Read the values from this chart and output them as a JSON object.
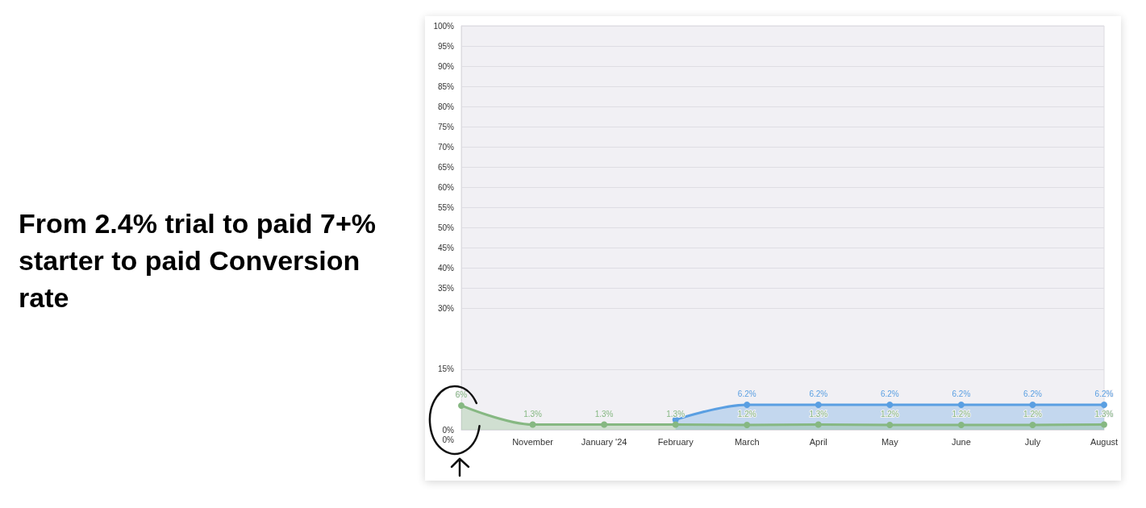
{
  "chart_data": {
    "type": "area",
    "title": "From 2.4% trial to paid 7+% starter to paid Conversion rate",
    "categories": [
      null,
      "November",
      "January '24",
      "February",
      "March",
      "April",
      "May",
      "June",
      "July",
      "August"
    ],
    "series": [
      {
        "color": "#5a9fe2",
        "values": [
          null,
          null,
          null,
          2.5,
          6.2,
          6.2,
          6.2,
          6.2,
          6.2,
          6.2
        ],
        "value_labels": [
          null,
          null,
          null,
          null,
          "6.2%",
          "6.2%",
          "6.2%",
          "6.2%",
          "6.2%",
          "6.2%"
        ]
      },
      {
        "color": "#86b882",
        "values": [
          6,
          1.3,
          1.3,
          1.3,
          1.2,
          1.3,
          1.2,
          1.2,
          1.2,
          1.3
        ],
        "value_labels": [
          "6%",
          "1.3%",
          "1.3%",
          "1.3%",
          "1.2%",
          "1.3%",
          "1.2%",
          "1.2%",
          "1.2%",
          "1.3%"
        ]
      }
    ],
    "ylim": [
      0,
      100
    ],
    "yticks": [
      {
        "value": 0,
        "label": "0%"
      },
      {
        "value": 15,
        "label": "15%"
      },
      {
        "value": 30,
        "label": "30%"
      },
      {
        "value": 35,
        "label": "35%"
      },
      {
        "value": 40,
        "label": "40%"
      },
      {
        "value": 45,
        "label": "45%"
      },
      {
        "value": 50,
        "label": "50%"
      },
      {
        "value": 55,
        "label": "55%"
      },
      {
        "value": 60,
        "label": "60%"
      },
      {
        "value": 65,
        "label": "65%"
      },
      {
        "value": 70,
        "label": "70%"
      },
      {
        "value": 75,
        "label": "75%"
      },
      {
        "value": 80,
        "label": "80%"
      },
      {
        "value": 85,
        "label": "85%"
      },
      {
        "value": 90,
        "label": "90%"
      },
      {
        "value": 95,
        "label": "95%"
      },
      {
        "value": 100,
        "label": "100%"
      }
    ],
    "annotations": [
      "0%"
    ],
    "grid": "y",
    "marker": "circle",
    "line_style": "solid"
  }
}
